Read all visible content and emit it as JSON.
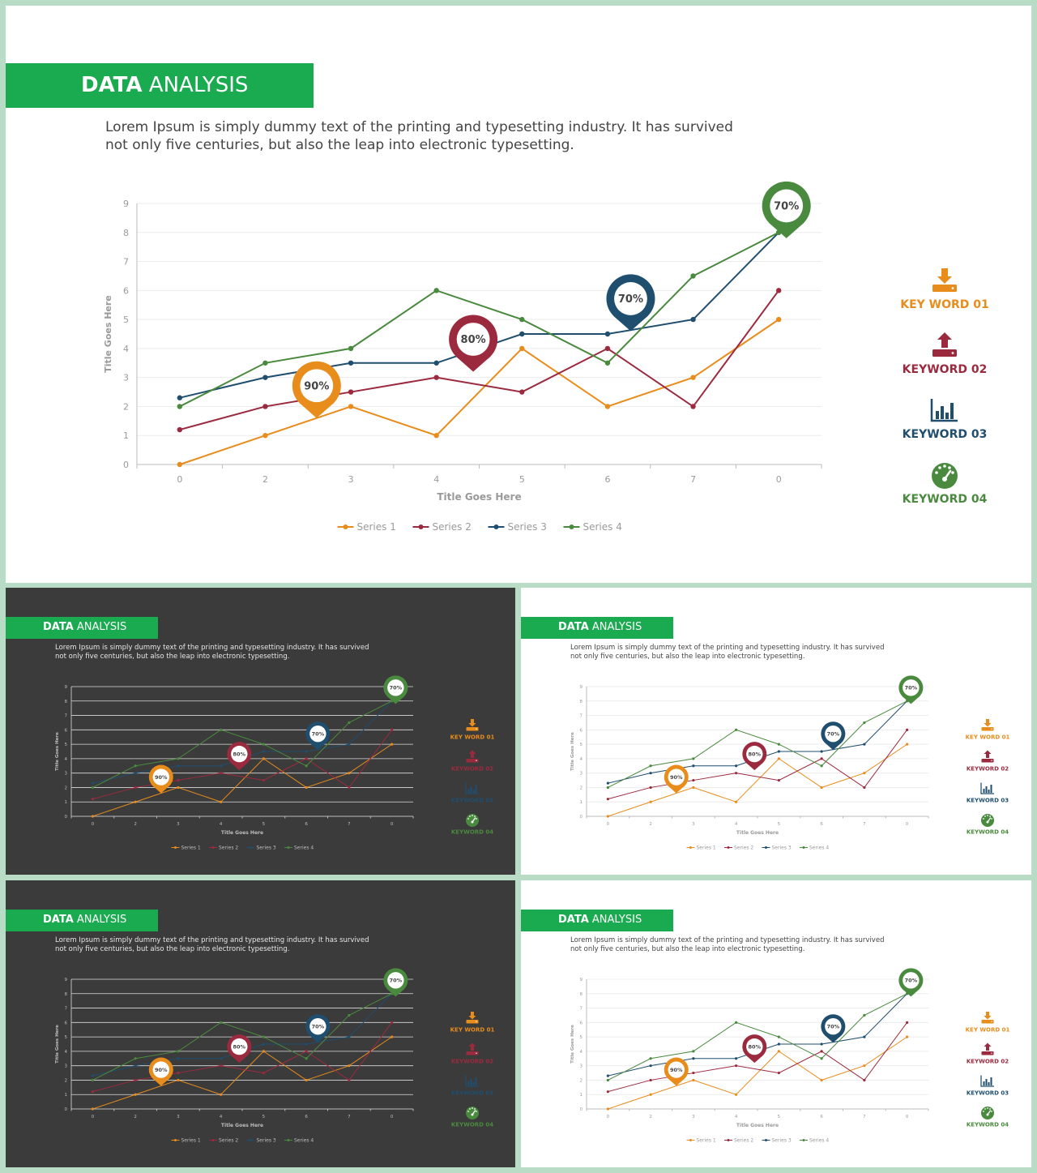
{
  "slides": [
    {
      "id": "main",
      "theme": "light"
    },
    {
      "id": "thumb-dark-1",
      "theme": "dark"
    },
    {
      "id": "thumb-light-1",
      "theme": "light"
    },
    {
      "id": "thumb-dark-2",
      "theme": "dark"
    },
    {
      "id": "thumb-light-2",
      "theme": "light"
    }
  ],
  "header": {
    "title_bold": "DATA",
    "title_rest": "ANALYSIS"
  },
  "description": "Lorem Ipsum is simply dummy text of the printing and typesetting industry. It has survived not only five centuries, but also the leap into electronic typesetting.",
  "keywords": [
    {
      "label": "KEY WORD 01",
      "icon": "download-tray-icon",
      "color": "#e88c1c"
    },
    {
      "label": "KEYWORD 02",
      "icon": "upload-tray-icon",
      "color": "#9c2a3f"
    },
    {
      "label": "KEYWORD 03",
      "icon": "bar-chart-icon",
      "color": "#1f4e6e"
    },
    {
      "label": "KEYWORD 04",
      "icon": "speedometer-icon",
      "color": "#4a8a3e"
    }
  ],
  "colors": {
    "accent": "#1aaa4f",
    "series1": "#e88c1c",
    "series2": "#9c2a3f",
    "series3": "#1f4e6e",
    "series4": "#4a8a3e"
  },
  "chart_data": {
    "type": "line",
    "categories": [
      "0",
      "2",
      "3",
      "4",
      "5",
      "6",
      "7",
      "0"
    ],
    "ylim": [
      0,
      9
    ],
    "yticks": [
      "0",
      "1",
      "2",
      "3",
      "4",
      "5",
      "6",
      "7",
      "8",
      "9"
    ],
    "xlabel": "Title Goes Here",
    "ylabel": "Title Goes Here",
    "legend_position": "bottom",
    "series": [
      {
        "name": "Series 1",
        "color": "#e88c1c",
        "values": [
          0,
          1,
          2,
          1,
          4,
          2,
          3,
          5
        ]
      },
      {
        "name": "Series 2",
        "color": "#9c2a3f",
        "values": [
          1.2,
          2,
          2.5,
          3,
          2.5,
          4,
          2,
          6
        ]
      },
      {
        "name": "Series 3",
        "color": "#1f4e6e",
        "values": [
          2.3,
          3,
          3.5,
          3.5,
          4.5,
          4.5,
          5,
          8
        ]
      },
      {
        "name": "Series 4",
        "color": "#4a8a3e",
        "values": [
          2,
          3.5,
          4,
          6,
          5,
          3.5,
          6.5,
          8
        ]
      }
    ],
    "markers": [
      {
        "label": "90%",
        "color": "#e88c1c",
        "x": 2.6,
        "y": 1.6
      },
      {
        "label": "80%",
        "color": "#9c2a3f",
        "x": 4.43,
        "y": 3.2
      },
      {
        "label": "70%",
        "color": "#1f4e6e",
        "x": 6.27,
        "y": 4.6
      },
      {
        "label": "70%",
        "color": "#4a8a3e",
        "x": 8.09,
        "y": 7.8
      }
    ]
  }
}
